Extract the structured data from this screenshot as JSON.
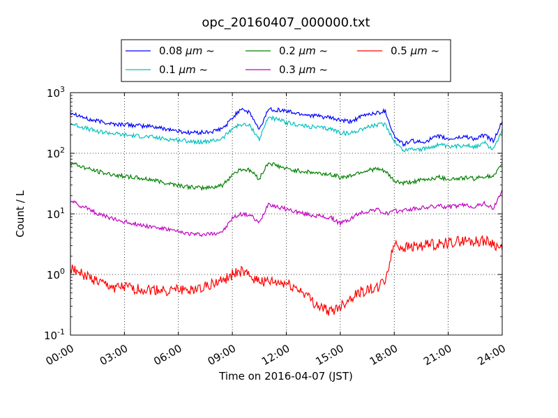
{
  "chart_data": {
    "type": "line",
    "title": "opc_20160407_000000.txt",
    "xlabel": "Time on 2016-04-07 (JST)",
    "ylabel": "Count / L",
    "yscale": "log",
    "ylim": [
      0.1,
      1000
    ],
    "xlim": [
      "00:00",
      "24:00"
    ],
    "x_ticks": [
      "00:00",
      "03:00",
      "06:00",
      "09:00",
      "12:00",
      "15:00",
      "18:00",
      "21:00",
      "24:00"
    ],
    "y_ticks": [
      {
        "base": "10",
        "exp": "-1"
      },
      {
        "base": "10",
        "exp": "0"
      },
      {
        "base": "10",
        "exp": "1"
      },
      {
        "base": "10",
        "exp": "2"
      },
      {
        "base": "10",
        "exp": "3"
      }
    ],
    "grid": true,
    "legend_placement": "top-center, above plot",
    "x": [
      0,
      0.5,
      1,
      1.5,
      2,
      2.5,
      3,
      3.5,
      4,
      4.5,
      5,
      5.5,
      6,
      6.5,
      7,
      7.5,
      8,
      8.5,
      9,
      9.5,
      10,
      10.5,
      11,
      11.5,
      12,
      12.5,
      13,
      13.5,
      14,
      14.5,
      15,
      15.5,
      16,
      16.5,
      17,
      17.5,
      18,
      18.5,
      19,
      19.5,
      20,
      20.5,
      21,
      21.5,
      22,
      22.5,
      23,
      23.5,
      24
    ],
    "series": [
      {
        "name": "0.08",
        "color": "#0000ff",
        "values": [
          480,
          420,
          360,
          340,
          320,
          300,
          300,
          290,
          280,
          280,
          260,
          250,
          230,
          220,
          220,
          220,
          230,
          260,
          380,
          560,
          450,
          240,
          540,
          520,
          500,
          460,
          440,
          420,
          400,
          380,
          350,
          330,
          380,
          440,
          460,
          500,
          190,
          140,
          160,
          150,
          170,
          190,
          170,
          180,
          190,
          170,
          200,
          160,
          330
        ]
      },
      {
        "name": "0.1",
        "color": "#00c0c0",
        "values": [
          310,
          280,
          250,
          230,
          220,
          210,
          200,
          195,
          190,
          185,
          175,
          170,
          165,
          160,
          155,
          155,
          160,
          180,
          260,
          300,
          280,
          170,
          400,
          360,
          320,
          300,
          280,
          270,
          260,
          250,
          220,
          210,
          240,
          270,
          290,
          300,
          160,
          110,
          120,
          115,
          125,
          140,
          125,
          130,
          140,
          125,
          150,
          115,
          250
        ]
      },
      {
        "name": "0.2",
        "color": "#008000",
        "values": [
          70,
          62,
          55,
          50,
          46,
          44,
          42,
          40,
          38,
          37,
          34,
          32,
          30,
          28,
          27,
          27,
          28,
          30,
          45,
          55,
          52,
          38,
          70,
          62,
          55,
          52,
          50,
          48,
          46,
          45,
          40,
          42,
          48,
          52,
          55,
          50,
          35,
          32,
          34,
          36,
          38,
          40,
          38,
          38,
          40,
          38,
          42,
          40,
          65
        ]
      },
      {
        "name": "0.3",
        "color": "#c000c0",
        "values": [
          16,
          14,
          12,
          10,
          9,
          8,
          7.5,
          7,
          6.5,
          6.2,
          5.8,
          5.5,
          5,
          4.8,
          4.6,
          4.6,
          4.8,
          5.2,
          8.5,
          10,
          9.5,
          7,
          15,
          13,
          12,
          11,
          10,
          9.5,
          9,
          8.5,
          7,
          8,
          10,
          11,
          12,
          10,
          11,
          11.5,
          12,
          12.5,
          13,
          13.5,
          13,
          13.5,
          14,
          13,
          15,
          12,
          25
        ]
      },
      {
        "name": "0.5",
        "color": "#ff0000",
        "values": [
          1.3,
          1.1,
          0.9,
          0.75,
          0.65,
          0.6,
          0.6,
          0.58,
          0.56,
          0.55,
          0.55,
          0.54,
          0.55,
          0.56,
          0.6,
          0.65,
          0.7,
          0.8,
          1.0,
          1.1,
          0.9,
          0.8,
          0.75,
          0.72,
          0.7,
          0.6,
          0.5,
          0.35,
          0.28,
          0.25,
          0.3,
          0.4,
          0.5,
          0.55,
          0.6,
          0.8,
          3.2,
          2.8,
          2.9,
          3.0,
          3.1,
          3.2,
          3.3,
          3.5,
          3.6,
          3.5,
          3.6,
          3.3,
          2.5
        ]
      }
    ]
  },
  "legend": {
    "unit": "μm",
    "suffix": "~"
  },
  "colors": {
    "axes": "#000000",
    "grid": "#000000",
    "background": "#ffffff"
  }
}
